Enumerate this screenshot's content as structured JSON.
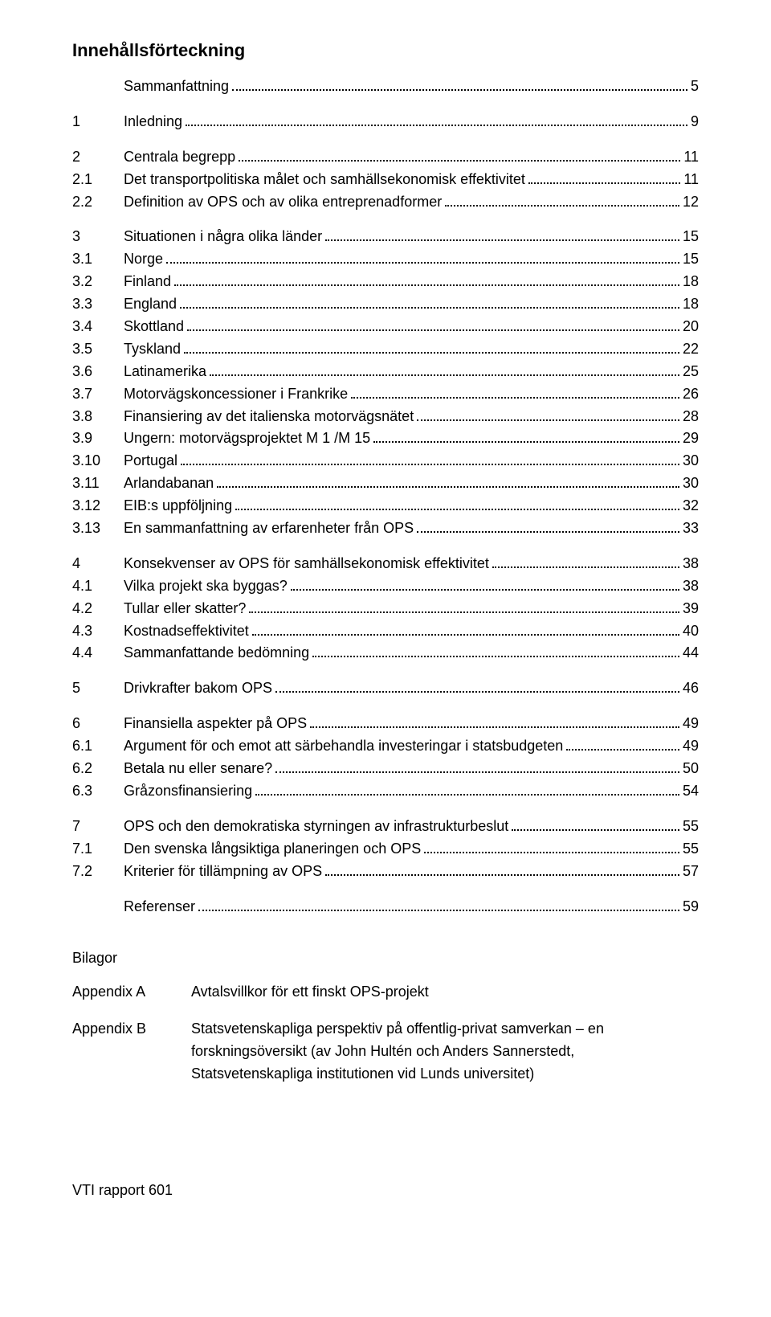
{
  "title": "Innehållsförteckning",
  "groups": [
    [
      {
        "num": "",
        "label": "Sammanfattning",
        "page": "5"
      }
    ],
    [
      {
        "num": "1",
        "label": "Inledning",
        "page": "9"
      }
    ],
    [
      {
        "num": "2",
        "label": "Centrala begrepp",
        "page": "11"
      },
      {
        "num": "2.1",
        "label": "Det transportpolitiska målet och samhällsekonomisk effektivitet",
        "page": "11"
      },
      {
        "num": "2.2",
        "label": "Definition av OPS och av olika entreprenadformer",
        "page": "12"
      }
    ],
    [
      {
        "num": "3",
        "label": "Situationen i några olika länder",
        "page": "15"
      },
      {
        "num": "3.1",
        "label": "Norge",
        "page": "15"
      },
      {
        "num": "3.2",
        "label": "Finland",
        "page": "18"
      },
      {
        "num": "3.3",
        "label": "England",
        "page": "18"
      },
      {
        "num": "3.4",
        "label": "Skottland",
        "page": "20"
      },
      {
        "num": "3.5",
        "label": "Tyskland",
        "page": "22"
      },
      {
        "num": "3.6",
        "label": "Latinamerika",
        "page": "25"
      },
      {
        "num": "3.7",
        "label": "Motorvägskoncessioner i Frankrike",
        "page": "26"
      },
      {
        "num": "3.8",
        "label": "Finansiering av det italienska motorvägsnätet",
        "page": "28"
      },
      {
        "num": "3.9",
        "label": "Ungern: motorvägsprojektet M 1 /M 15",
        "page": "29"
      },
      {
        "num": "3.10",
        "label": "Portugal",
        "page": "30"
      },
      {
        "num": "3.11",
        "label": "Arlandabanan",
        "page": "30"
      },
      {
        "num": "3.12",
        "label": "EIB:s uppföljning",
        "page": "32"
      },
      {
        "num": "3.13",
        "label": "En sammanfattning av erfarenheter från OPS",
        "page": "33"
      }
    ],
    [
      {
        "num": "4",
        "label": "Konsekvenser av OPS för samhällsekonomisk effektivitet",
        "page": "38"
      },
      {
        "num": "4.1",
        "label": "Vilka projekt ska byggas?",
        "page": "38"
      },
      {
        "num": "4.2",
        "label": "Tullar eller skatter?",
        "page": "39"
      },
      {
        "num": "4.3",
        "label": "Kostnadseffektivitet",
        "page": "40"
      },
      {
        "num": "4.4",
        "label": "Sammanfattande bedömning",
        "page": "44"
      }
    ],
    [
      {
        "num": "5",
        "label": "Drivkrafter bakom OPS",
        "page": "46"
      }
    ],
    [
      {
        "num": "6",
        "label": "Finansiella aspekter på OPS",
        "page": "49"
      },
      {
        "num": "6.1",
        "label": "Argument för och emot att särbehandla investeringar i statsbudgeten",
        "page": "49"
      },
      {
        "num": "6.2",
        "label": "Betala nu eller senare?",
        "page": "50"
      },
      {
        "num": "6.3",
        "label": "Gråzonsfinansiering",
        "page": "54"
      }
    ],
    [
      {
        "num": "7",
        "label": "OPS och den demokratiska styrningen av infrastrukturbeslut",
        "page": "55"
      },
      {
        "num": "7.1",
        "label": "Den svenska långsiktiga planeringen och OPS",
        "page": "55"
      },
      {
        "num": "7.2",
        "label": "Kriterier för tillämpning av OPS",
        "page": "57"
      }
    ],
    [
      {
        "num": "",
        "label": "Referenser",
        "page": "59"
      }
    ]
  ],
  "bilagor": {
    "heading": "Bilagor",
    "items": [
      {
        "label": "Appendix A",
        "text": "Avtalsvillkor för ett finskt OPS-projekt"
      },
      {
        "label": "Appendix B",
        "text": "Statsvetenskapliga perspektiv på offentlig-privat samverkan – en forskningsöversikt (av John Hultén och Anders Sannerstedt, Statsvetenskapliga institutionen vid Lunds universitet)"
      }
    ]
  },
  "footer": "VTI rapport 601"
}
